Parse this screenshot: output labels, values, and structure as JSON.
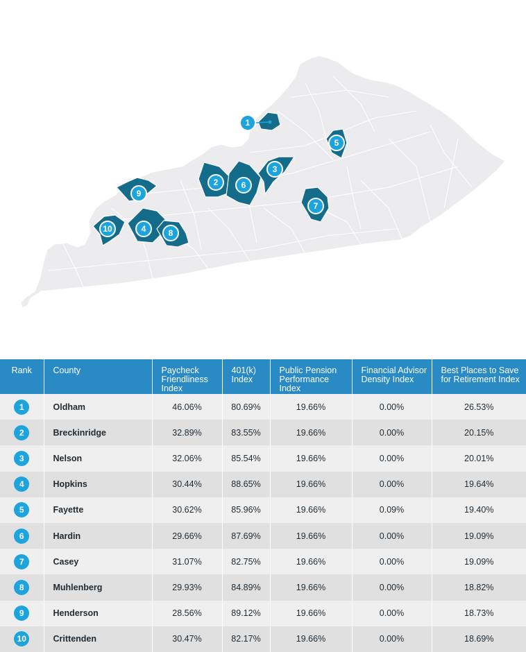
{
  "colors": {
    "header_bg": "#2a8ac4",
    "highlight_county": "#146b8a",
    "badge": "#1ea4dc",
    "state_fill": "#ececee"
  },
  "map_badges": [
    "1",
    "2",
    "3",
    "4",
    "5",
    "6",
    "7",
    "8",
    "9",
    "10"
  ],
  "table": {
    "headers": [
      "Rank",
      "County",
      "Paycheck Friendliness Index",
      "401(k) Index",
      "Public Pension Performance Index",
      "Financial Advisor Density Index",
      "Best Places to Save for Retirement Index"
    ],
    "rows": [
      {
        "rank": "1",
        "county": "Oldham",
        "paycheck": "46.06%",
        "k401": "80.69%",
        "pension": "19.66%",
        "advisor": "0.00%",
        "best": "26.53%"
      },
      {
        "rank": "2",
        "county": "Breckinridge",
        "paycheck": "32.89%",
        "k401": "83.55%",
        "pension": "19.66%",
        "advisor": "0.00%",
        "best": "20.15%"
      },
      {
        "rank": "3",
        "county": "Nelson",
        "paycheck": "32.06%",
        "k401": "85.54%",
        "pension": "19.66%",
        "advisor": "0.00%",
        "best": "20.01%"
      },
      {
        "rank": "4",
        "county": "Hopkins",
        "paycheck": "30.44%",
        "k401": "88.65%",
        "pension": "19.66%",
        "advisor": "0.00%",
        "best": "19.64%"
      },
      {
        "rank": "5",
        "county": "Fayette",
        "paycheck": "30.62%",
        "k401": "85.96%",
        "pension": "19.66%",
        "advisor": "0.09%",
        "best": "19.40%"
      },
      {
        "rank": "6",
        "county": "Hardin",
        "paycheck": "29.66%",
        "k401": "87.69%",
        "pension": "19.66%",
        "advisor": "0.00%",
        "best": "19.09%"
      },
      {
        "rank": "7",
        "county": "Casey",
        "paycheck": "31.07%",
        "k401": "82.75%",
        "pension": "19.66%",
        "advisor": "0.00%",
        "best": "19.09%"
      },
      {
        "rank": "8",
        "county": "Muhlenberg",
        "paycheck": "29.93%",
        "k401": "84.89%",
        "pension": "19.66%",
        "advisor": "0.00%",
        "best": "18.82%"
      },
      {
        "rank": "9",
        "county": "Henderson",
        "paycheck": "28.56%",
        "k401": "89.12%",
        "pension": "19.66%",
        "advisor": "0.00%",
        "best": "18.73%"
      },
      {
        "rank": "10",
        "county": "Crittenden",
        "paycheck": "30.47%",
        "k401": "82.17%",
        "pension": "19.66%",
        "advisor": "0.00%",
        "best": "18.69%"
      }
    ]
  }
}
